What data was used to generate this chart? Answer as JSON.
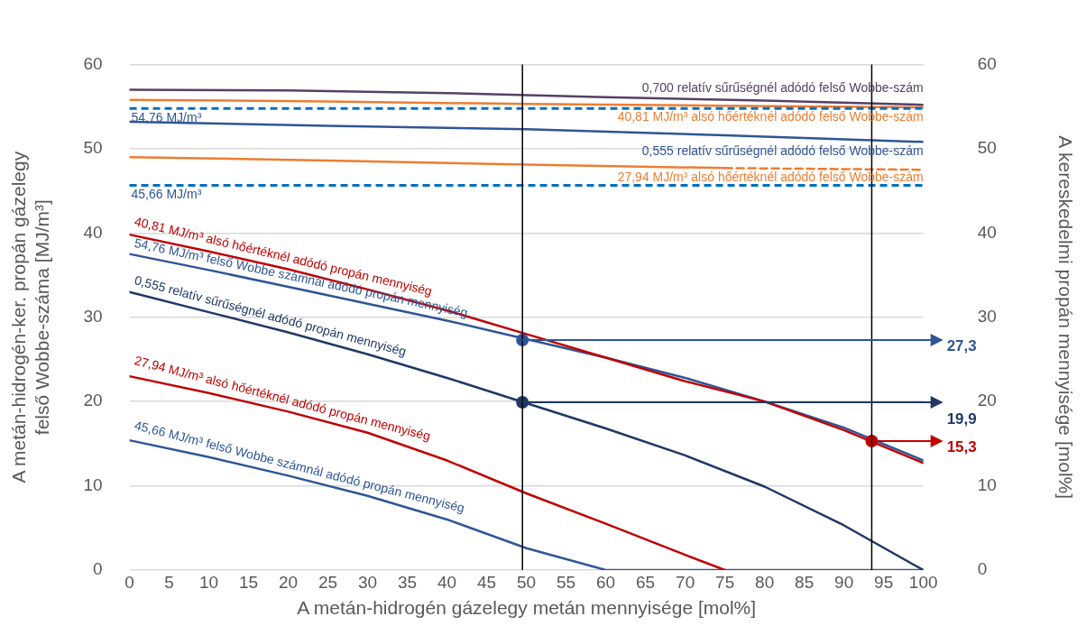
{
  "chart_data": {
    "type": "line",
    "xlabel": "A metán-hidrogén gázelegy metán mennyisége [mol%]",
    "ylabel": "A metán-hidrogén-ker. propán gázelegy\nfelső Wobbe-száma [MJ/m³]",
    "y2label": "A kereskedelmi propán mennyisége [mol%]",
    "xlim": [
      0,
      100
    ],
    "xticks": [
      0,
      5,
      10,
      15,
      20,
      25,
      30,
      35,
      40,
      45,
      50,
      55,
      60,
      65,
      70,
      75,
      80,
      85,
      90,
      95,
      100
    ],
    "ylim": [
      0,
      60
    ],
    "yticks": [
      0,
      10,
      20,
      30,
      40,
      50,
      60
    ],
    "y2lim": [
      0,
      60
    ],
    "y2ticks": [
      0,
      10,
      20,
      30,
      40,
      50,
      60
    ],
    "grid": "y",
    "legend": false,
    "marker": "none",
    "line_style": "solid",
    "ref_lines": [
      {
        "axis": "y",
        "value": 54.76,
        "label": "54,76 MJ/m³",
        "color": "#0070c0",
        "line_style": "dashed"
      },
      {
        "axis": "y",
        "value": 45.66,
        "label": "45,66 MJ/m³",
        "color": "#0070c0",
        "line_style": "dashed"
      },
      {
        "axis": "x",
        "value": 49.5,
        "color": "#000000"
      },
      {
        "axis": "x",
        "value": 93.5,
        "color": "#000000"
      }
    ],
    "series": [
      {
        "name": "0,700 relatív sűrűségnél adódó felső Wobbe-szám",
        "color": "#574066",
        "x": [
          0,
          20,
          40,
          60,
          80,
          100
        ],
        "values": [
          57.0,
          56.9,
          56.6,
          56.1,
          55.7,
          55.2
        ]
      },
      {
        "name": "40,81 MJ/m³ alsó hőértéknél adódó felső Wobbe-szám",
        "color": "#ed7d31",
        "x": [
          0,
          25,
          50,
          75,
          100
        ],
        "values": [
          55.8,
          55.6,
          55.3,
          55.1,
          54.9
        ]
      },
      {
        "name": "0,555 relatív sűrűségnél adódó felső Wobbe-szám",
        "color": "#2f5597",
        "x": [
          0,
          25,
          50,
          75,
          100
        ],
        "values": [
          53.2,
          52.7,
          52.3,
          51.6,
          50.8
        ]
      },
      {
        "name": "27,94 MJ/m³ alsó hőértéknél adódó felső Wobbe-szám",
        "color": "#ed7d31",
        "x": [
          0,
          25,
          50,
          75
        ],
        "values": [
          49.0,
          48.6,
          48.1,
          47.7
        ]
      },
      {
        "color": "#ed7d31",
        "line_style": "dashed",
        "x": [
          75,
          100
        ],
        "values": [
          47.7,
          47.5
        ]
      },
      {
        "name": "40,81 MJ/m³ alsó hőértéknél adódó propán mennyiség",
        "color": "#c00000",
        "axis": "y2",
        "x": [
          0,
          10,
          20,
          30,
          40,
          50,
          60,
          70,
          80,
          90,
          100
        ],
        "values": [
          39.8,
          37.8,
          35.7,
          33.3,
          30.8,
          28.0,
          25.2,
          22.4,
          20.0,
          16.6,
          12.7
        ]
      },
      {
        "name": "54,76 MJ/m³ felső Wobbe számnál adódó propán mennyiség",
        "color": "#2f5597",
        "axis": "y2",
        "x": [
          0,
          10,
          20,
          30,
          40,
          50,
          60,
          70,
          80,
          90,
          100
        ],
        "values": [
          37.5,
          35.6,
          33.6,
          31.6,
          29.6,
          27.4,
          25.2,
          22.8,
          20.0,
          16.9,
          13.0
        ]
      },
      {
        "name": "0,555 relatív sűrűségnél adódó propán mennyiség",
        "color": "#1f3864",
        "axis": "y2",
        "x": [
          0,
          10,
          20,
          30,
          40,
          50,
          60,
          70,
          80,
          90,
          100
        ],
        "values": [
          33.0,
          30.6,
          28.2,
          25.6,
          22.8,
          19.8,
          16.8,
          13.6,
          9.9,
          5.3,
          0
        ]
      },
      {
        "name": "27,94 MJ/m³ alsó hőértéknél adódó propán mennyiség",
        "color": "#c00000",
        "axis": "y2",
        "x": [
          0,
          10,
          20,
          30,
          40,
          50,
          60,
          70,
          75
        ],
        "values": [
          23.0,
          21.0,
          18.8,
          16.3,
          13.0,
          9.1,
          5.5,
          1.8,
          0
        ]
      },
      {
        "name": "45,66 MJ/m³ felső Wobbe számnál adódó propán mennyiség",
        "color": "#2f5597",
        "axis": "y2",
        "x": [
          0,
          10,
          20,
          30,
          40,
          50,
          60,
          100
        ],
        "values": [
          15.4,
          13.4,
          11.2,
          8.8,
          6.0,
          2.6,
          0,
          0
        ]
      },
      {
        "type": "scatter",
        "marker": "circle",
        "axis": "y2",
        "x": [
          49.5,
          49.5,
          93.5
        ],
        "values": [
          27.3,
          19.9,
          15.3
        ],
        "colors": [
          "#2f5597",
          "#1f3864",
          "#c00000"
        ],
        "value_labels": [
          "27,3",
          "19,9",
          "15,3"
        ]
      }
    ]
  }
}
